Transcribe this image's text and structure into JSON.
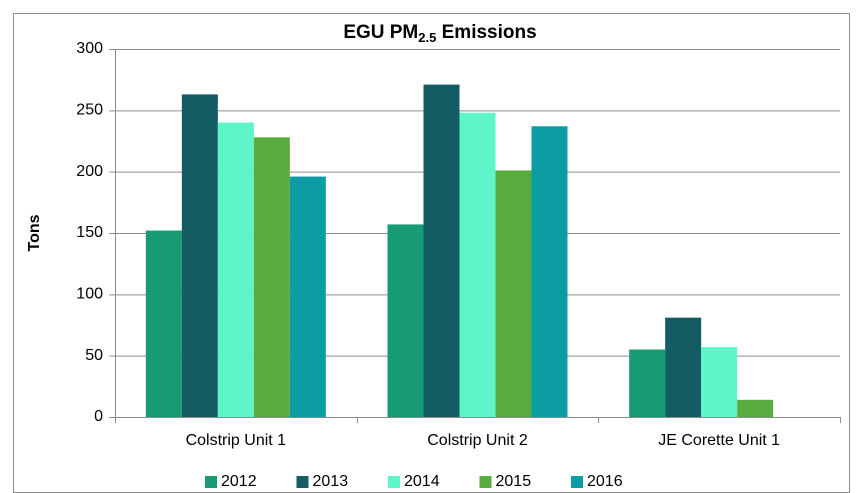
{
  "chart_data": {
    "type": "bar",
    "title": [
      "EGU PM",
      "2.5",
      " Emissions"
    ],
    "y_label": "Tons",
    "categories": [
      "Colstrip Unit 1",
      "Colstrip Unit 2",
      "JE Corette Unit 1"
    ],
    "series": [
      {
        "name": "2012",
        "color": "#169b74",
        "values": [
          152,
          157,
          55
        ]
      },
      {
        "name": "2013",
        "color": "#135c63",
        "values": [
          263,
          271,
          81
        ]
      },
      {
        "name": "2014",
        "color": "#5ef5c8",
        "values": [
          240,
          248,
          57
        ]
      },
      {
        "name": "2015",
        "color": "#5aab3e",
        "values": [
          228,
          201,
          14
        ]
      },
      {
        "name": "2016",
        "color": "#0b9ca4",
        "values": [
          196,
          237,
          null
        ]
      }
    ],
    "ylim": [
      0,
      300
    ],
    "yticks": [
      0,
      50,
      100,
      150,
      200,
      250,
      300
    ],
    "grid": true,
    "legend": "bottom"
  }
}
